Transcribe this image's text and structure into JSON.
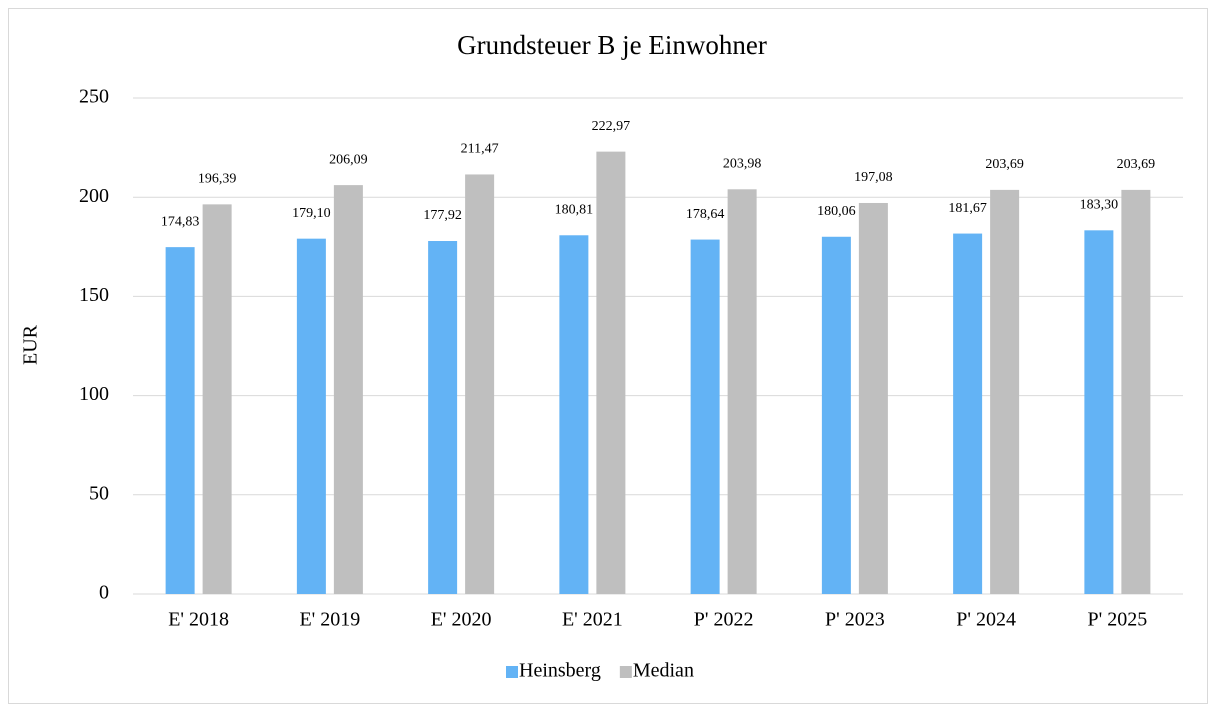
{
  "chart_data": {
    "type": "bar",
    "title": "Grundsteuer B je Einwohner",
    "y_label": "EUR",
    "categories": [
      "E' 2018",
      "E' 2019",
      "E' 2020",
      "E' 2021",
      "P' 2022",
      "P' 2023",
      "P' 2024",
      "P' 2025"
    ],
    "series": [
      {
        "name": "Heinsberg",
        "color": "#63b3f5",
        "values": [
          174.83,
          179.1,
          177.92,
          180.81,
          178.64,
          180.06,
          181.67,
          183.3
        ],
        "value_labels": [
          "174,83",
          "179,10",
          "177,92",
          "180,81",
          "178,64",
          "180,06",
          "181,67",
          "183,30"
        ]
      },
      {
        "name": "Median",
        "color": "#bfbfbf",
        "values": [
          196.39,
          206.09,
          211.47,
          222.97,
          203.98,
          197.08,
          203.69,
          203.69
        ],
        "value_labels": [
          "196,39",
          "206,09",
          "211,47",
          "222,97",
          "203,98",
          "197,08",
          "203,69",
          "203,69"
        ]
      }
    ],
    "ylim": [
      0,
      250
    ],
    "yticks": [
      0,
      50,
      100,
      150,
      200,
      250
    ],
    "grid": true,
    "legend": "bottom"
  }
}
